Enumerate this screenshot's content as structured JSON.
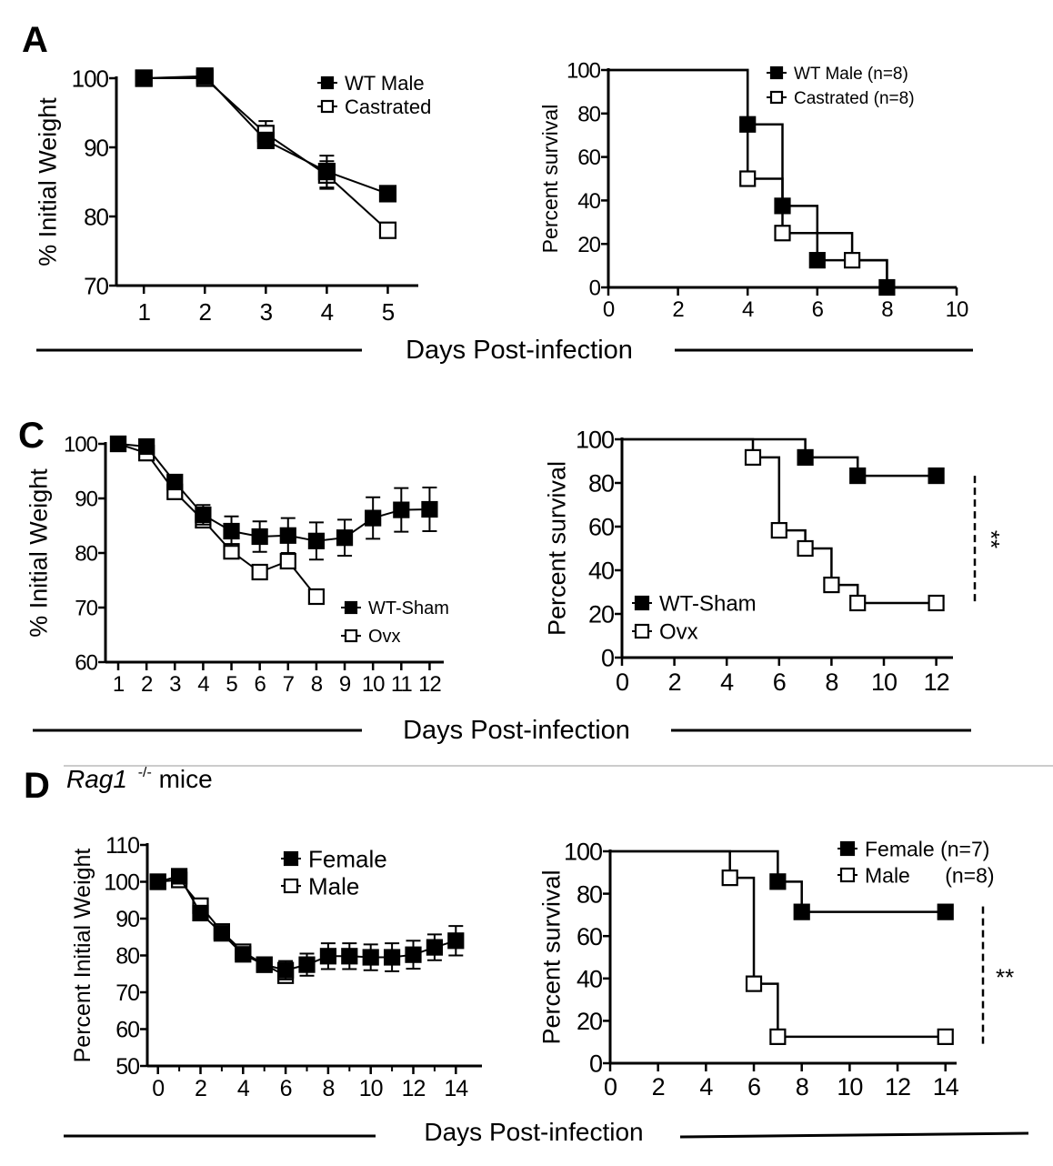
{
  "figure": {
    "panels": [
      {
        "letter": "A"
      },
      {
        "letter": "C"
      },
      {
        "letter": "D",
        "subtitle_italic": "Rag1",
        "subtitle_sup": "-/-",
        "subtitle_rest": " mice"
      }
    ],
    "shared_xlabels": [
      "Days Post-infection",
      "Days Post-infection",
      "Days Post-infection"
    ],
    "colors": {
      "ink": "#000000",
      "background": "#ffffff",
      "divider": "#cccccc"
    }
  },
  "chart_data": [
    {
      "id": "A-weight",
      "type": "line",
      "panel": "A",
      "title": "",
      "xlabel": "",
      "ylabel": "% Initial Weight",
      "xlim": [
        0.55,
        5.5
      ],
      "ylim": [
        70,
        100
      ],
      "xticks": [
        1,
        2,
        3,
        4,
        5
      ],
      "xtick_labels": [
        "1",
        "2",
        "3",
        "4",
        "5"
      ],
      "yticks": [
        70,
        80,
        90,
        100
      ],
      "ytick_labels": [
        "70",
        "80",
        "90",
        "100"
      ],
      "grid": false,
      "legend_position": "top-right",
      "series": [
        {
          "name": "WT Male",
          "marker": "filled-square",
          "x": [
            1,
            2,
            3,
            4,
            5
          ],
          "y": [
            100,
            100.3,
            91,
            86.5,
            83.3
          ],
          "err": [
            0,
            0.5,
            1,
            2.3,
            0.5
          ]
        },
        {
          "name": "Castrated",
          "marker": "open-square",
          "x": [
            1,
            2,
            3,
            4,
            5
          ],
          "y": [
            100,
            100,
            92,
            86,
            78
          ],
          "err": [
            0,
            0.3,
            1.8,
            2,
            0.5
          ]
        }
      ]
    },
    {
      "id": "A-survival",
      "type": "line",
      "subtype": "kaplan-meier",
      "panel": "A",
      "title": "",
      "xlabel": "",
      "ylabel": "Percent survival",
      "xlim": [
        0,
        10
      ],
      "ylim": [
        0,
        100
      ],
      "xticks": [
        0,
        2,
        4,
        6,
        8,
        10
      ],
      "xtick_labels": [
        "0",
        "2",
        "4",
        "6",
        "8",
        "10"
      ],
      "yticks": [
        0,
        20,
        40,
        60,
        80,
        100
      ],
      "ytick_labels": [
        "0",
        "20",
        "40",
        "60",
        "80",
        "100"
      ],
      "grid": false,
      "legend_position": "top-right",
      "series": [
        {
          "name": "WT Male (n=8)",
          "marker": "filled-square",
          "steps": [
            [
              0,
              100
            ],
            [
              4,
              75
            ],
            [
              5,
              37.5
            ],
            [
              6,
              12.5
            ],
            [
              8,
              0
            ]
          ],
          "markers_at": [
            [
              4,
              75
            ],
            [
              5,
              37.5
            ],
            [
              6,
              12.5
            ],
            [
              8,
              0
            ]
          ]
        },
        {
          "name": "Castrated (n=8)",
          "marker": "open-square",
          "steps": [
            [
              0,
              100
            ],
            [
              4,
              50
            ],
            [
              5,
              25
            ],
            [
              7,
              12.5
            ],
            [
              8,
              0
            ]
          ],
          "markers_at": [
            [
              4,
              50
            ],
            [
              5,
              25
            ],
            [
              7,
              12.5
            ]
          ]
        }
      ]
    },
    {
      "id": "C-weight",
      "type": "line",
      "panel": "C",
      "title": "",
      "xlabel": "",
      "ylabel": "% Initial Weight",
      "xlim": [
        0.55,
        12.5
      ],
      "ylim": [
        60,
        100
      ],
      "xticks": [
        1,
        2,
        3,
        4,
        5,
        6,
        7,
        8,
        9,
        10,
        11,
        12
      ],
      "xtick_labels": [
        "1",
        "2",
        "3",
        "4",
        "5",
        "6",
        "7",
        "8",
        "9",
        "10",
        "11",
        "12"
      ],
      "yticks": [
        60,
        70,
        80,
        90,
        100
      ],
      "ytick_labels": [
        "60",
        "70",
        "80",
        "90",
        "100"
      ],
      "grid": false,
      "legend_position": "bottom-right",
      "series": [
        {
          "name": "WT-Sham",
          "marker": "filled-square",
          "x": [
            1,
            2,
            3,
            4,
            5,
            6,
            7,
            8,
            9,
            10,
            11,
            12
          ],
          "y": [
            100,
            99.5,
            93,
            87,
            84,
            83,
            83.2,
            82.2,
            82.8,
            86.4,
            87.9,
            88
          ],
          "err": [
            0,
            0.5,
            1.2,
            1.8,
            2.7,
            2.8,
            3.2,
            3.4,
            3.3,
            3.8,
            4,
            4
          ]
        },
        {
          "name": "Ovx",
          "marker": "open-square",
          "x": [
            1,
            2,
            3,
            4,
            5,
            6,
            7,
            8
          ],
          "y": [
            100,
            98.3,
            91.2,
            86,
            80.3,
            76.5,
            78.5,
            72
          ],
          "err": [
            0,
            0.5,
            0.8,
            0.8,
            0.8,
            0.8,
            0.8,
            0
          ]
        }
      ]
    },
    {
      "id": "C-survival",
      "type": "line",
      "subtype": "kaplan-meier",
      "panel": "C",
      "title": "",
      "xlabel": "",
      "ylabel": "Percent survival",
      "xlim": [
        0,
        12.5
      ],
      "ylim": [
        0,
        100
      ],
      "xticks": [
        0,
        2,
        4,
        6,
        8,
        10,
        12
      ],
      "xtick_labels": [
        "0",
        "2",
        "4",
        "6",
        "8",
        "10",
        "12"
      ],
      "yticks": [
        0,
        20,
        40,
        60,
        80,
        100
      ],
      "ytick_labels": [
        "0",
        "20",
        "40",
        "60",
        "80",
        "100"
      ],
      "grid": false,
      "legend_position": "bottom-left",
      "annotation": {
        "text": "**",
        "between_y": [
          83.3,
          25
        ],
        "orientation": "vertical"
      },
      "series": [
        {
          "name": "WT-Sham",
          "marker": "filled-square",
          "steps": [
            [
              0,
              100
            ],
            [
              7,
              91.7
            ],
            [
              9,
              83.3
            ],
            [
              12,
              83.3
            ]
          ],
          "markers_at": [
            [
              7,
              91.7
            ],
            [
              9,
              83.3
            ],
            [
              12,
              83.3
            ]
          ]
        },
        {
          "name": "Ovx",
          "marker": "open-square",
          "steps": [
            [
              0,
              100
            ],
            [
              5,
              91.7
            ],
            [
              6,
              58.3
            ],
            [
              7,
              50
            ],
            [
              8,
              33.3
            ],
            [
              9,
              25
            ],
            [
              12,
              25
            ]
          ],
          "markers_at": [
            [
              5,
              91.7
            ],
            [
              6,
              58.3
            ],
            [
              7,
              50
            ],
            [
              8,
              33.3
            ],
            [
              9,
              25
            ],
            [
              12,
              25
            ]
          ]
        }
      ]
    },
    {
      "id": "D-weight",
      "type": "line",
      "panel": "D",
      "title": "",
      "xlabel": "",
      "ylabel": "Percent Initial Weight",
      "xlim": [
        -0.5,
        14.5
      ],
      "ylim": [
        50,
        110
      ],
      "xticks": [
        0,
        2,
        4,
        6,
        8,
        10,
        12,
        14
      ],
      "xtick_labels": [
        "0",
        "2",
        "4",
        "6",
        "8",
        "10",
        "12",
        "14"
      ],
      "minor_xticks": [
        1,
        3,
        5,
        7,
        9,
        11,
        13
      ],
      "yticks": [
        50,
        60,
        70,
        80,
        90,
        100,
        110
      ],
      "ytick_labels": [
        "50",
        "60",
        "70",
        "80",
        "90",
        "100",
        "110"
      ],
      "grid": false,
      "legend_position": "top-right",
      "series": [
        {
          "name": "Female",
          "marker": "filled-square",
          "x": [
            0,
            1,
            2,
            3,
            4,
            5,
            6,
            7,
            8,
            9,
            10,
            11,
            12,
            13,
            14
          ],
          "y": [
            100,
            101.5,
            91.5,
            86,
            80.3,
            77.5,
            76,
            77.5,
            79.8,
            79.8,
            79.5,
            79.5,
            80.2,
            82.2,
            84
          ],
          "err": [
            0,
            0.5,
            0.8,
            1,
            1,
            1,
            2.5,
            3,
            3.5,
            3.5,
            3.5,
            3.8,
            3.8,
            3.5,
            4
          ]
        },
        {
          "name": "Male",
          "marker": "open-square",
          "x": [
            0,
            1,
            2,
            3,
            4,
            5,
            6
          ],
          "y": [
            100,
            100.5,
            93.5,
            86.5,
            81,
            77.5,
            74.5
          ],
          "err": [
            0,
            0.5,
            0.8,
            0.8,
            0.8,
            0.8,
            0.8
          ]
        }
      ]
    },
    {
      "id": "D-survival",
      "type": "line",
      "subtype": "kaplan-meier",
      "panel": "D",
      "title": "",
      "xlabel": "",
      "ylabel": "Percent survival",
      "xlim": [
        0,
        14.2
      ],
      "ylim": [
        0,
        100
      ],
      "xticks": [
        0,
        2,
        4,
        6,
        8,
        10,
        12,
        14
      ],
      "xtick_labels": [
        "0",
        "2",
        "4",
        "6",
        "8",
        "10",
        "12",
        "14"
      ],
      "yticks": [
        0,
        20,
        40,
        60,
        80,
        100
      ],
      "ytick_labels": [
        "0",
        "20",
        "40",
        "60",
        "80",
        "100"
      ],
      "grid": false,
      "legend_position": "top-right",
      "annotation": {
        "text": "**",
        "between_y": [
          71.4,
          12.5
        ],
        "orientation": "horizontal"
      },
      "series": [
        {
          "name": "Female (n=7)",
          "marker": "filled-square",
          "steps": [
            [
              0,
              100
            ],
            [
              7,
              85.7
            ],
            [
              8,
              71.4
            ],
            [
              14,
              71.4
            ]
          ],
          "markers_at": [
            [
              7,
              85.7
            ],
            [
              8,
              71.4
            ],
            [
              14,
              71.4
            ]
          ]
        },
        {
          "name": "Male      (n=8)",
          "marker": "open-square",
          "steps": [
            [
              0,
              100
            ],
            [
              5,
              87.5
            ],
            [
              6,
              37.5
            ],
            [
              7,
              12.5
            ],
            [
              14,
              12.5
            ]
          ],
          "markers_at": [
            [
              5,
              87.5
            ],
            [
              6,
              37.5
            ],
            [
              7,
              12.5
            ],
            [
              14,
              12.5
            ]
          ]
        }
      ]
    }
  ]
}
